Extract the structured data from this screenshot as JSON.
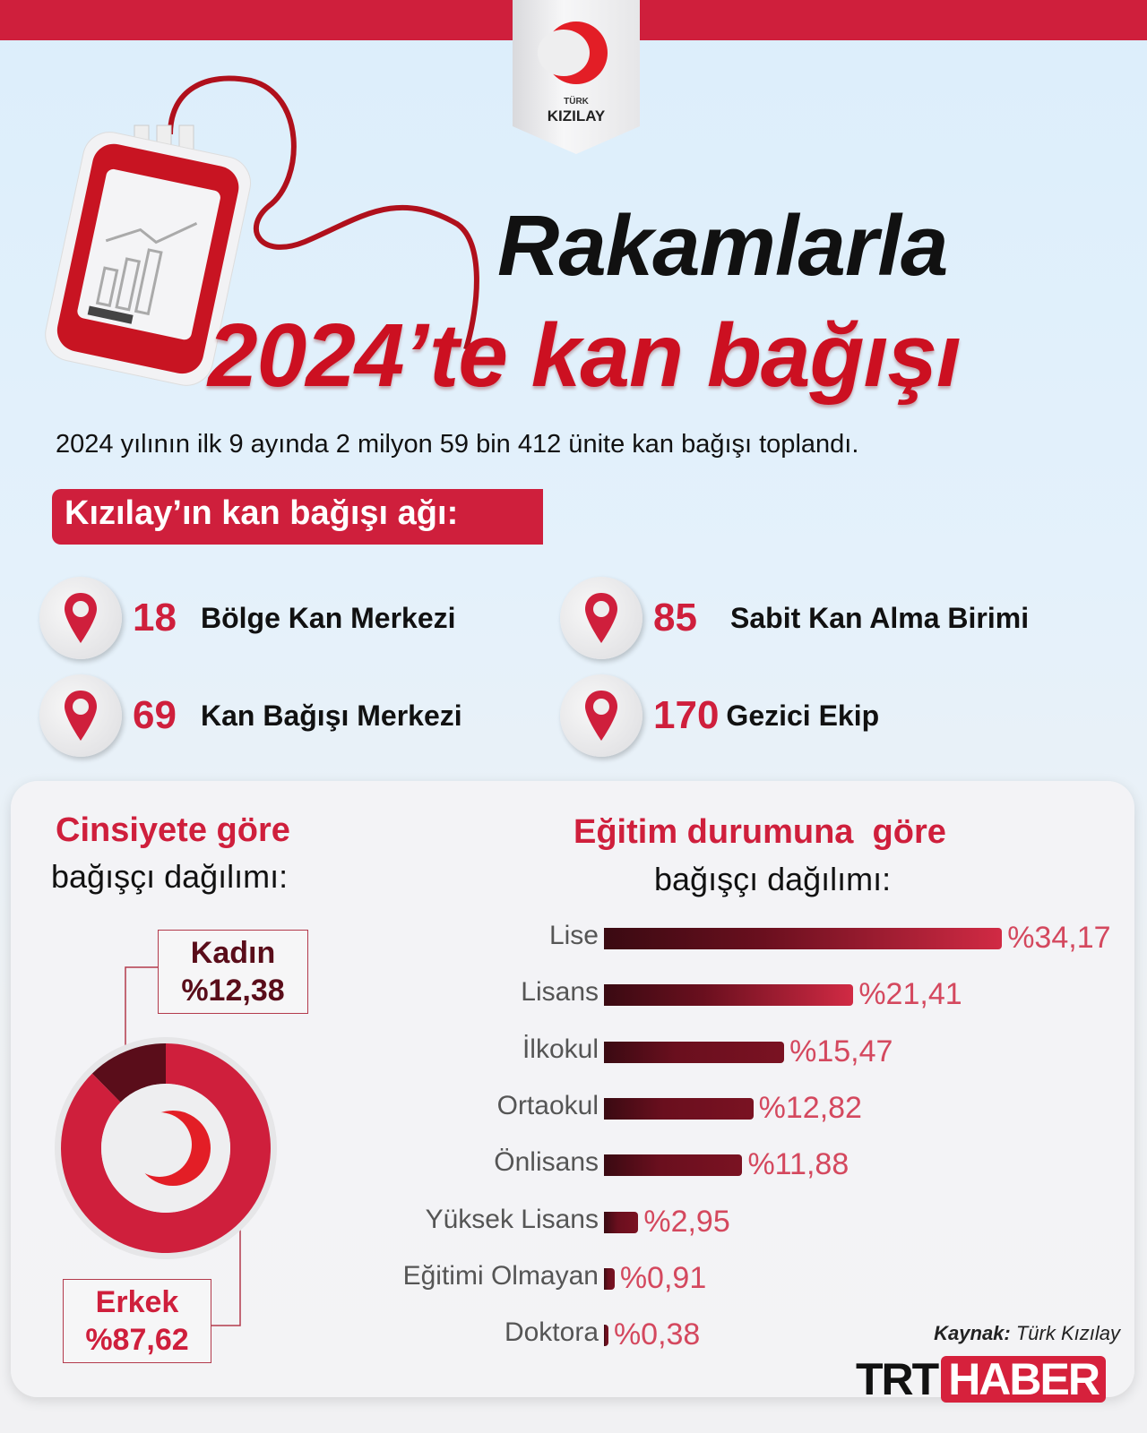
{
  "header": {
    "logo_small": "TÜRK",
    "logo_main": "KIZILAY",
    "title_line1": "Rakamlarla",
    "title_line2": "2024’te kan bağışı",
    "subtitle": "2024 yılının ilk 9 ayında 2 milyon 59 bin 412 ünite kan bağışı toplandı."
  },
  "network": {
    "heading": "Kızılay’ın kan bağışı ağı:",
    "items": [
      {
        "value": "18",
        "label": "Bölge Kan Merkezi",
        "icon": "map-pin-icon"
      },
      {
        "value": "85",
        "label": "Sabit Kan Alma Birimi",
        "icon": "map-pin-icon"
      },
      {
        "value": "69",
        "label": "Kan Bağışı Merkezi",
        "icon": "map-pin-icon"
      },
      {
        "value": "170",
        "label": "Gezici Ekip",
        "icon": "map-pin-icon"
      }
    ]
  },
  "chart_data": [
    {
      "type": "pie",
      "title": "Cinsiyete göre",
      "subtitle": "bağışçı dağılımı:",
      "slices": [
        {
          "name": "Kadın",
          "value": 12.38,
          "label": "%12,38",
          "color": "#5a0d1a"
        },
        {
          "name": "Erkek",
          "value": 87.62,
          "label": "%87,62",
          "color": "#cf1f3c"
        }
      ]
    },
    {
      "type": "bar",
      "orientation": "horizontal",
      "title": "Eğitim durumuna  göre",
      "subtitle": "bağışçı dağılımı:",
      "categories": [
        "Lise",
        "Lisans",
        "İlkokul",
        "Ortaokul",
        "Önlisans",
        "Yüksek Lisans",
        "Eğitimi Olmayan",
        "Doktora"
      ],
      "values": [
        34.17,
        21.41,
        15.47,
        12.82,
        11.88,
        2.95,
        0.91,
        0.38
      ],
      "labels": [
        "%34,17",
        "%21,41",
        "%15,47",
        "%12,82",
        "%11,88",
        "%2,95",
        "%0,91",
        "%0,38"
      ],
      "colors": {
        "start": "#3a0a12",
        "end": "#d12a44"
      }
    }
  ],
  "footer": {
    "source_label": "Kaynak:",
    "source_value": "Türk Kızılay",
    "brand_1": "TRT",
    "brand_2": "HABER"
  },
  "colors": {
    "accent": "#cf1f3c",
    "dark": "#3a0a12"
  }
}
